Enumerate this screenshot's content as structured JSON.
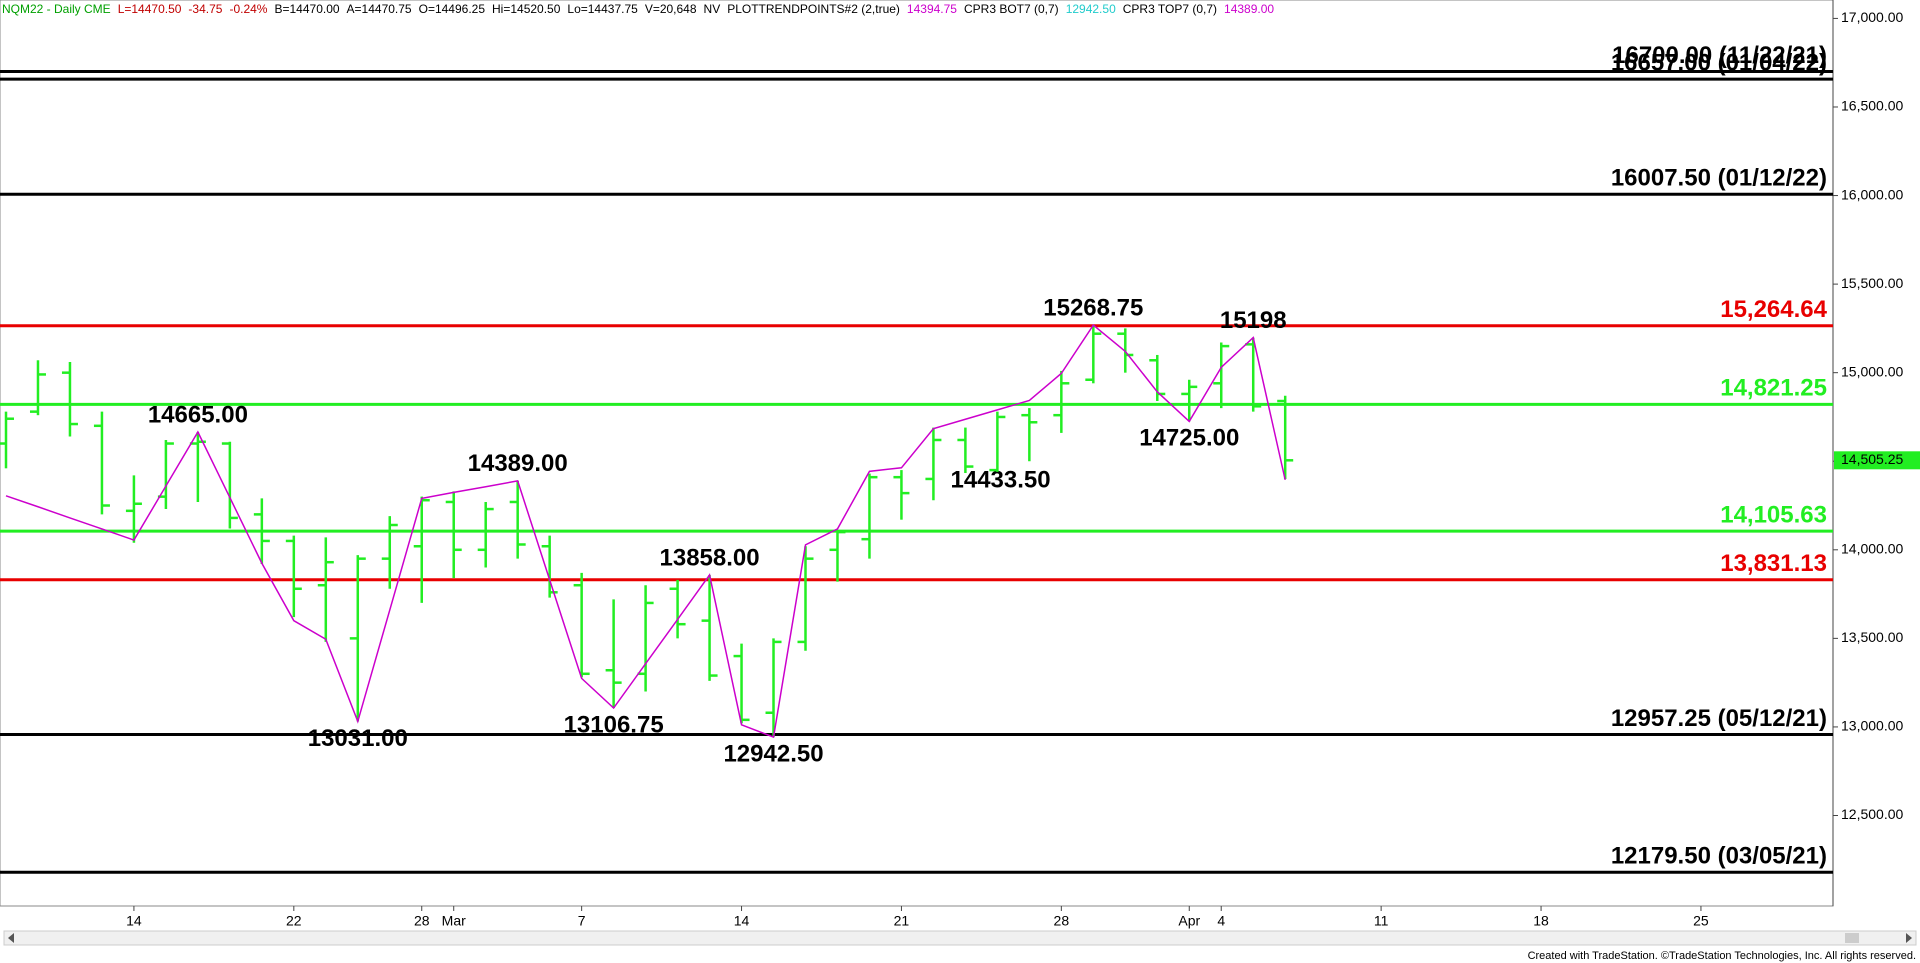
{
  "chart_data": {
    "type": "ohlc",
    "header": [
      {
        "text": "NQM22 - Daily  CME",
        "color": "#00a000"
      },
      {
        "text": "L=14470.50",
        "color": "#c00000"
      },
      {
        "text": "-34.75",
        "color": "#c00000"
      },
      {
        "text": "-0.24%",
        "color": "#c00000"
      },
      {
        "text": "B=14470.00",
        "color": "#000000"
      },
      {
        "text": "A=14470.75",
        "color": "#000000"
      },
      {
        "text": "O=14496.25",
        "color": "#000000"
      },
      {
        "text": "Hi=14520.50",
        "color": "#000000"
      },
      {
        "text": "Lo=14437.75",
        "color": "#000000"
      },
      {
        "text": "V=20,648",
        "color": "#000000"
      },
      {
        "text": "NV",
        "color": "#000000"
      },
      {
        "text": "PLOTTRENDPOINTS#2 (2,true)",
        "color": "#000000"
      },
      {
        "text": "14394.75",
        "color": "#cc00cc"
      },
      {
        "text": "CPR3 BOT7 (0,7)",
        "color": "#000000"
      },
      {
        "text": "12942.50",
        "color": "#22cccc"
      },
      {
        "text": "CPR3 TOP7 (0,7)",
        "color": "#000000"
      },
      {
        "text": "14389.00",
        "color": "#cc00cc"
      }
    ],
    "categories": [
      null,
      null,
      null,
      null,
      "14",
      null,
      null,
      null,
      null,
      "22",
      null,
      null,
      null,
      "28",
      "Mar",
      null,
      null,
      null,
      "7",
      null,
      null,
      null,
      null,
      "14",
      null,
      null,
      null,
      null,
      "21",
      null,
      null,
      null,
      null,
      "28",
      null,
      null,
      null,
      "Apr",
      "4",
      null,
      null,
      null,
      null,
      "11",
      null,
      null,
      null,
      null,
      "18",
      null,
      null,
      null,
      null,
      "25",
      null,
      null,
      null,
      null
    ],
    "bar_color": "#22ee22",
    "open": {
      "values": [
        14600,
        14780,
        15000,
        14700,
        14220,
        14300,
        14600,
        14600,
        14200,
        14050,
        13800,
        13500,
        13950,
        14020,
        14270,
        14000,
        14270,
        14020,
        13800,
        13320,
        13300,
        13780,
        13600,
        13400,
        13080,
        13480,
        14000,
        14060,
        14410,
        14400,
        14620,
        14450,
        14760,
        14760,
        14960,
        15220,
        15070,
        14880,
        14940,
        15160,
        14840,
        null,
        null,
        null,
        null,
        null,
        null,
        null,
        null,
        null,
        null,
        null,
        null,
        null,
        null,
        null,
        null,
        null
      ]
    },
    "high": {
      "values": [
        14780,
        15070,
        15060,
        14780,
        14420,
        14620,
        14665,
        14610,
        14290,
        14080,
        14070,
        13970,
        14190,
        14300,
        14330,
        14270,
        14389,
        14080,
        13870,
        13720,
        13800,
        13830,
        13858,
        13470,
        13500,
        14020,
        14110,
        14430,
        14450,
        14690,
        14690,
        14780,
        14800,
        15010,
        15268.75,
        15250,
        15100,
        14960,
        15170,
        15198,
        14870,
        null,
        null,
        null,
        null,
        null,
        null,
        null,
        null,
        null,
        null,
        null,
        null,
        null,
        null,
        null,
        null,
        null
      ]
    },
    "low": {
      "values": [
        14460,
        14760,
        14640,
        14200,
        14040,
        14230,
        14270,
        14120,
        13920,
        13620,
        13480,
        13031,
        13780,
        13700,
        13840,
        13900,
        13950,
        13730,
        13280,
        13106.75,
        13200,
        13500,
        13260,
        13020,
        12942.5,
        13430,
        13820,
        13950,
        14170,
        14280,
        14433.5,
        14440,
        14500,
        14660,
        14940,
        15000,
        14840,
        14725,
        14800,
        14780,
        14400,
        null,
        null,
        null,
        null,
        null,
        null,
        null,
        null,
        null,
        null,
        null,
        null,
        null,
        null,
        null,
        null,
        null
      ],
      "value_labels": [
        null,
        null,
        null,
        null,
        null,
        null,
        null,
        null,
        null,
        null,
        null,
        null,
        null,
        null,
        null,
        null,
        null,
        null,
        null,
        null,
        null,
        null,
        null,
        null,
        null,
        null,
        null,
        null,
        null,
        null,
        "14433.50",
        null,
        null,
        null,
        null,
        null,
        null,
        null,
        null,
        null,
        null,
        null,
        null,
        null,
        null,
        null,
        null,
        null,
        null,
        null,
        null,
        null,
        null,
        null,
        null,
        null,
        null,
        null
      ]
    },
    "close": {
      "values": [
        14740,
        14990,
        14710,
        14250,
        14260,
        14600,
        14610,
        14180,
        14050,
        13780,
        13930,
        13950,
        14140,
        14280,
        14000,
        14230,
        14030,
        13760,
        13300,
        13250,
        13700,
        13580,
        13290,
        13040,
        13480,
        13950,
        14100,
        14410,
        14320,
        14620,
        14470,
        14750,
        14720,
        14940,
        15220,
        15100,
        14880,
        14920,
        15150,
        14810,
        14505.25,
        null,
        null,
        null,
        null,
        null,
        null,
        null,
        null,
        null,
        null,
        null,
        null,
        null,
        null,
        null,
        null,
        null
      ]
    },
    "trendline": {
      "color": "#cc00cc",
      "values": [
        14305,
        14243,
        14180,
        14118,
        14055,
        14360,
        14665,
        14295,
        13924,
        13600,
        13495,
        13031,
        13660,
        14290,
        14324,
        14356,
        14389,
        13830,
        13274,
        13106.75,
        13357,
        13607,
        13858,
        13012,
        12942.5,
        14028,
        14118,
        14443,
        14463,
        14684,
        14737,
        14790,
        14843,
        14996,
        15268.75,
        15120,
        14892,
        14725,
        15030,
        15198,
        14394.75,
        null,
        null,
        null,
        null,
        null,
        null,
        null,
        null,
        null,
        null,
        null,
        null,
        null,
        null,
        null,
        null,
        null
      ],
      "value_labels": [
        null,
        null,
        null,
        null,
        null,
        null,
        "14665.00",
        null,
        null,
        null,
        null,
        "13031.00",
        null,
        null,
        null,
        null,
        "14389.00",
        null,
        null,
        "13106.75",
        null,
        null,
        "13858.00",
        null,
        "12942.50",
        null,
        null,
        null,
        null,
        null,
        null,
        null,
        null,
        null,
        "15268.75",
        null,
        null,
        "14725.00",
        null,
        "15198",
        null,
        null,
        null,
        null,
        null,
        null,
        null,
        null,
        null,
        null,
        null,
        null,
        null,
        null,
        null,
        null,
        null,
        null
      ]
    },
    "levels": [
      {
        "value": 16700,
        "label": "16700.00 (11/22/21)",
        "color": "#000000"
      },
      {
        "value": 16657,
        "label": "16657.00 (01/04/22)",
        "color": "#000000"
      },
      {
        "value": 16007.5,
        "label": "16007.50 (01/12/22)",
        "color": "#000000"
      },
      {
        "value": 15264.64,
        "label": "15,264.64",
        "color": "#e80000"
      },
      {
        "value": 14821.25,
        "label": "14,821.25",
        "color": "#22ee22"
      },
      {
        "value": 14105.63,
        "label": "14,105.63",
        "color": "#22ee22"
      },
      {
        "value": 13831.13,
        "label": "13,831.13",
        "color": "#e80000"
      },
      {
        "value": 12957.25,
        "label": "12957.25 (05/12/21)",
        "color": "#000000"
      },
      {
        "value": 12179.5,
        "label": "12179.50 (03/05/21)",
        "color": "#000000"
      }
    ],
    "last_price": {
      "value": 14505.25,
      "label": "14,505.25"
    },
    "ylim": [
      11989,
      17104
    ],
    "yticks": [
      {
        "value": 12500,
        "label": "12,500.00"
      },
      {
        "value": 13000,
        "label": "13,000.00"
      },
      {
        "value": 13500,
        "label": "13,500.00"
      },
      {
        "value": 14000,
        "label": "14,000.00"
      },
      {
        "value": 14500,
        "label": "14,500.00"
      },
      {
        "value": 15000,
        "label": "15,000.00"
      },
      {
        "value": 15500,
        "label": "15,500.00"
      },
      {
        "value": 16000,
        "label": "16,000.00"
      },
      {
        "value": 16500,
        "label": "16,500.00"
      },
      {
        "value": 17000,
        "label": "17,000.00"
      }
    ],
    "footer": "Created with TradeStation. ©TradeStation Technologies, Inc. All rights reserved."
  }
}
